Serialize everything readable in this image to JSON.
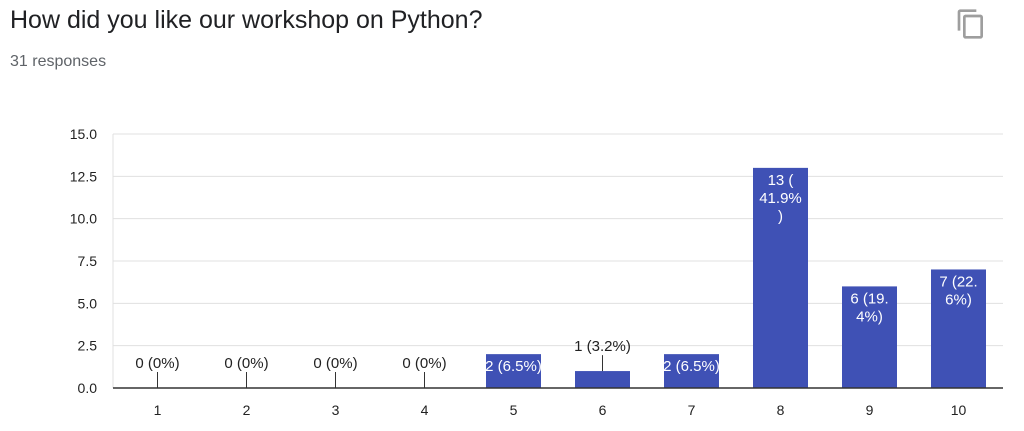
{
  "header": {
    "question": "How did you like our workshop on Python?",
    "responses": "31 responses",
    "copy_icon": "copy-icon"
  },
  "colors": {
    "bar": "#3f51b5",
    "grid": "#e0e0e0",
    "axis": "#333333",
    "label_outside": "#222222",
    "label_inside": "#ffffff"
  },
  "chart_data": {
    "type": "bar",
    "categories": [
      "1",
      "2",
      "3",
      "4",
      "5",
      "6",
      "7",
      "8",
      "9",
      "10"
    ],
    "values": [
      0,
      0,
      0,
      0,
      2,
      1,
      2,
      13,
      6,
      7
    ],
    "data_labels": [
      [
        "0 (0%)"
      ],
      [
        "0 (0%)"
      ],
      [
        "0 (0%)"
      ],
      [
        "0 (0%)"
      ],
      [
        "2 (6.5%)"
      ],
      [
        "1 (3.2%)"
      ],
      [
        "2 (6.5%)"
      ],
      [
        "13 (",
        "41.9%",
        ")"
      ],
      [
        "6 (19.",
        "4%)"
      ],
      [
        "7 (22.",
        "6%)"
      ]
    ],
    "yticks": [
      "0.0",
      "2.5",
      "5.0",
      "7.5",
      "10.0",
      "12.5",
      "15.0"
    ],
    "ylim": [
      0,
      15
    ],
    "grid": true,
    "legend": "none"
  }
}
